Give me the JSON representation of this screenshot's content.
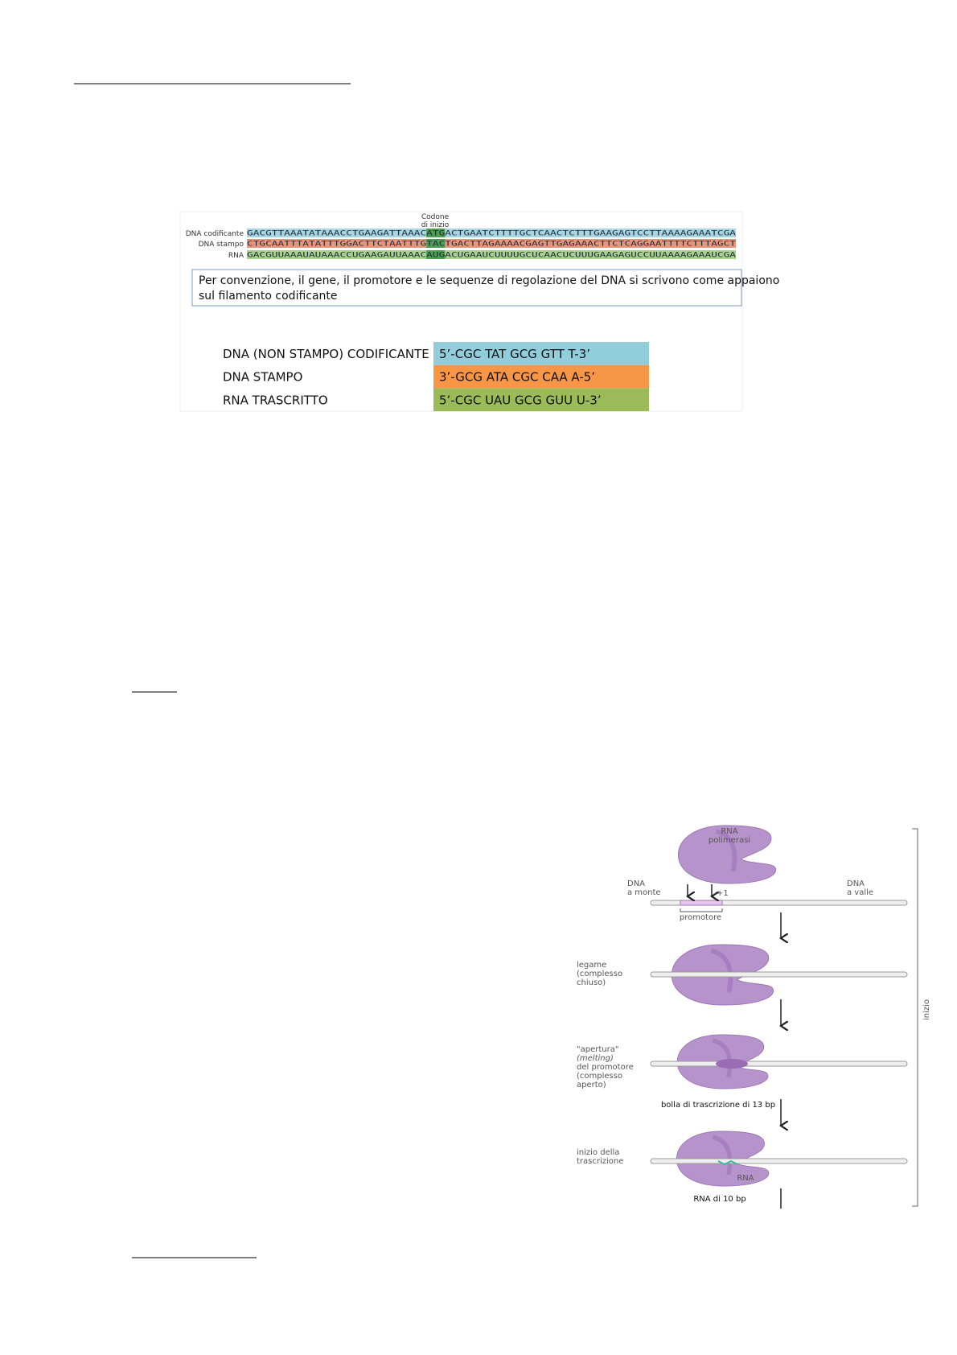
{
  "figure1": {
    "codon_label": [
      "Codone",
      "di inizio"
    ],
    "rows": [
      {
        "label": "DNA codificante",
        "pre": "GACGTTAAATATAAACCTGAAGATTAAAC",
        "codon": "ATG",
        "post": "ACTGAATCTTTTGCTCAACTCTTTGAAGAGTCCTTAAAAGAAATCGA"
      },
      {
        "label": "DNA stampo",
        "pre": "CTGCAATTTATATTTGGACTTCTAATTTG",
        "codon": "TAC",
        "post": "TGACTTAGAAAACGAGTTGAGAAACTTCTCAGGAATTTTCTTTAGCT"
      },
      {
        "label": "RNA",
        "pre": "GACGUUAAAUAUAAACCUGAAGAUUAAAC",
        "codon": "AUG",
        "post": "ACUGAAUCUUUUGCUCAACUCUUUGAAGAGUCCUUAAAAGAAAUCGA"
      }
    ],
    "note": [
      "Per convenzione, il gene, il promotore e le sequenze di regolazione del DNA si scrivono come appaiono",
      "sul filamento codificante"
    ],
    "table": [
      [
        "DNA (NON STAMPO) CODIFICANTE",
        "5’-CGC TAT GCG GTT T-3’"
      ],
      [
        "DNA STAMPO",
        "3’-GCG ATA CGC CAA A-5’"
      ],
      [
        "RNA TRASCRITTO",
        "5’-CGC UAU GCG GUU U-3’"
      ]
    ]
  },
  "figure2": {
    "polymerase": [
      "RNA",
      "polimerasi"
    ],
    "upstream": [
      "DNA",
      "a monte"
    ],
    "downstream": [
      "DNA",
      "a valle"
    ],
    "plus_one": "+1",
    "promoter": "promotore",
    "binding": [
      "legame",
      "(complesso",
      "chiuso)"
    ],
    "melting": [
      "\"apertura\"",
      "(melting)",
      "del promotore",
      "(complesso",
      "aperto)"
    ],
    "bubble": "bolla di trascrizione di 13 bp",
    "start": [
      "inizio della",
      "trascrizione"
    ],
    "rna": "RNA",
    "rna_length": "RNA di 10 bp",
    "phase": "inizio"
  }
}
